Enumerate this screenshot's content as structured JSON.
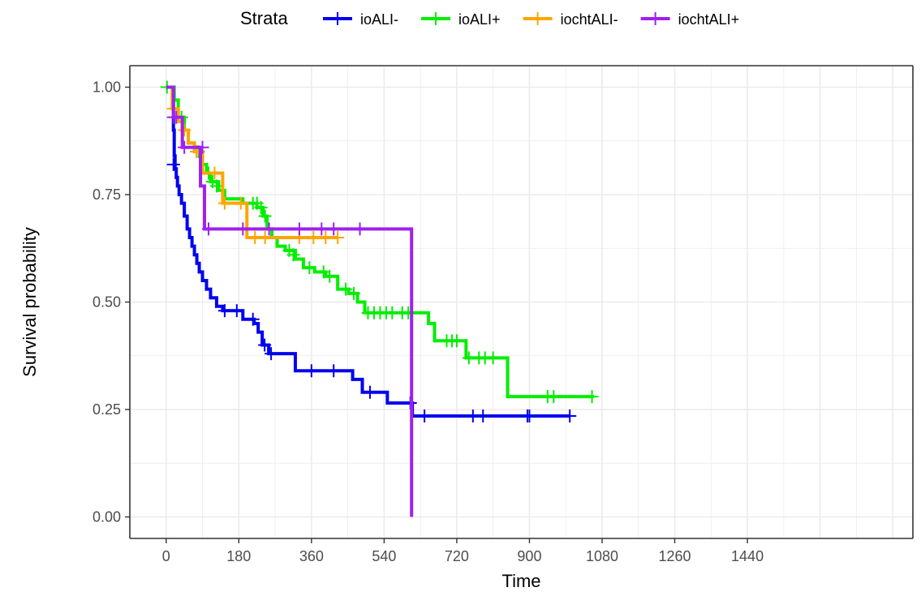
{
  "chart_data": {
    "type": "line",
    "subtype": "kaplan-meier survival curve",
    "xlabel": "Time",
    "ylabel": "Survival probability",
    "xlim": [
      -90,
      1850
    ],
    "ylim": [
      -0.05,
      1.05
    ],
    "x_ticks": [
      0,
      180,
      360,
      540,
      720,
      900,
      1080,
      1260,
      1440
    ],
    "x_tick_labels": [
      "0",
      "180",
      "360",
      "540",
      "720",
      "900",
      "1080",
      "1260",
      "1440"
    ],
    "y_ticks": [
      0,
      0.25,
      0.5,
      0.75,
      1
    ],
    "y_tick_labels": [
      "0.00",
      "0.25",
      "0.50",
      "0.75",
      "1.00"
    ],
    "grid": true,
    "legend": {
      "title": "Strata",
      "position": "top"
    },
    "series": [
      {
        "name": "ioALI-",
        "color": "#0000EE",
        "steps": [
          [
            0,
            1.0
          ],
          [
            18,
            0.9
          ],
          [
            20,
            0.84
          ],
          [
            22,
            0.81
          ],
          [
            25,
            0.79
          ],
          [
            28,
            0.77
          ],
          [
            32,
            0.75
          ],
          [
            38,
            0.73
          ],
          [
            45,
            0.7
          ],
          [
            52,
            0.67
          ],
          [
            58,
            0.65
          ],
          [
            64,
            0.63
          ],
          [
            70,
            0.61
          ],
          [
            76,
            0.59
          ],
          [
            82,
            0.57
          ],
          [
            90,
            0.55
          ],
          [
            100,
            0.53
          ],
          [
            110,
            0.51
          ],
          [
            125,
            0.49
          ],
          [
            140,
            0.48
          ],
          [
            190,
            0.46
          ],
          [
            218,
            0.45
          ],
          [
            228,
            0.43
          ],
          [
            238,
            0.4
          ],
          [
            254,
            0.38
          ],
          [
            320,
            0.34
          ],
          [
            462,
            0.32
          ],
          [
            486,
            0.29
          ],
          [
            548,
            0.265
          ],
          [
            610,
            0.235
          ],
          [
            1000,
            0.235
          ]
        ],
        "censors": [
          [
            18,
            0.82
          ],
          [
            145,
            0.48
          ],
          [
            175,
            0.48
          ],
          [
            215,
            0.46
          ],
          [
            244,
            0.4
          ],
          [
            260,
            0.38
          ],
          [
            360,
            0.34
          ],
          [
            415,
            0.34
          ],
          [
            505,
            0.29
          ],
          [
            605,
            0.265
          ],
          [
            640,
            0.235
          ],
          [
            760,
            0.235
          ],
          [
            785,
            0.235
          ],
          [
            895,
            0.235
          ],
          [
            900,
            0.235
          ],
          [
            1000,
            0.235
          ]
        ]
      },
      {
        "name": "ioALI+",
        "color": "#00EE00",
        "steps": [
          [
            0,
            1.0
          ],
          [
            20,
            0.97
          ],
          [
            30,
            0.93
          ],
          [
            45,
            0.9
          ],
          [
            55,
            0.87
          ],
          [
            70,
            0.85
          ],
          [
            90,
            0.82
          ],
          [
            100,
            0.8
          ],
          [
            110,
            0.78
          ],
          [
            130,
            0.76
          ],
          [
            145,
            0.74
          ],
          [
            190,
            0.73
          ],
          [
            225,
            0.72
          ],
          [
            240,
            0.7
          ],
          [
            250,
            0.67
          ],
          [
            262,
            0.65
          ],
          [
            275,
            0.63
          ],
          [
            295,
            0.62
          ],
          [
            320,
            0.6
          ],
          [
            340,
            0.58
          ],
          [
            368,
            0.57
          ],
          [
            395,
            0.56
          ],
          [
            425,
            0.53
          ],
          [
            452,
            0.52
          ],
          [
            474,
            0.5
          ],
          [
            492,
            0.475
          ],
          [
            650,
            0.45
          ],
          [
            665,
            0.41
          ],
          [
            743,
            0.37
          ],
          [
            846,
            0.28
          ],
          [
            1060,
            0.28
          ]
        ],
        "censors": [
          [
            2,
            1.0
          ],
          [
            38,
            0.93
          ],
          [
            80,
            0.85
          ],
          [
            105,
            0.8
          ],
          [
            115,
            0.78
          ],
          [
            125,
            0.77
          ],
          [
            215,
            0.73
          ],
          [
            225,
            0.73
          ],
          [
            235,
            0.72
          ],
          [
            245,
            0.7
          ],
          [
            305,
            0.62
          ],
          [
            315,
            0.61
          ],
          [
            355,
            0.58
          ],
          [
            390,
            0.57
          ],
          [
            405,
            0.56
          ],
          [
            445,
            0.53
          ],
          [
            465,
            0.52
          ],
          [
            500,
            0.475
          ],
          [
            515,
            0.475
          ],
          [
            530,
            0.475
          ],
          [
            545,
            0.475
          ],
          [
            560,
            0.475
          ],
          [
            585,
            0.475
          ],
          [
            600,
            0.475
          ],
          [
            695,
            0.41
          ],
          [
            708,
            0.41
          ],
          [
            720,
            0.41
          ],
          [
            750,
            0.37
          ],
          [
            775,
            0.37
          ],
          [
            790,
            0.37
          ],
          [
            810,
            0.37
          ],
          [
            945,
            0.28
          ],
          [
            960,
            0.28
          ],
          [
            1055,
            0.28
          ]
        ]
      },
      {
        "name": "iochtALI-",
        "color": "#FFA500",
        "steps": [
          [
            0,
            1.0
          ],
          [
            15,
            0.95
          ],
          [
            30,
            0.92
          ],
          [
            40,
            0.9
          ],
          [
            55,
            0.87
          ],
          [
            70,
            0.85
          ],
          [
            90,
            0.8
          ],
          [
            140,
            0.73
          ],
          [
            200,
            0.65
          ],
          [
            425,
            0.65
          ]
        ],
        "censors": [
          [
            18,
            0.95
          ],
          [
            45,
            0.9
          ],
          [
            75,
            0.85
          ],
          [
            120,
            0.8
          ],
          [
            145,
            0.73
          ],
          [
            185,
            0.73
          ],
          [
            220,
            0.65
          ],
          [
            245,
            0.65
          ],
          [
            330,
            0.65
          ],
          [
            365,
            0.65
          ],
          [
            395,
            0.65
          ],
          [
            425,
            0.65
          ]
        ]
      },
      {
        "name": "iochtALI+",
        "color": "#A020F0",
        "steps": [
          [
            0,
            1.0
          ],
          [
            10,
            1.0
          ],
          [
            18,
            0.93
          ],
          [
            40,
            0.86
          ],
          [
            85,
            0.77
          ],
          [
            95,
            0.67
          ],
          [
            608,
            0.67
          ],
          [
            608,
            0.0
          ]
        ],
        "censors": [
          [
            18,
            0.93
          ],
          [
            25,
            0.93
          ],
          [
            45,
            0.86
          ],
          [
            90,
            0.86
          ],
          [
            105,
            0.67
          ],
          [
            190,
            0.67
          ],
          [
            255,
            0.67
          ],
          [
            330,
            0.67
          ],
          [
            385,
            0.67
          ],
          [
            415,
            0.67
          ],
          [
            480,
            0.67
          ]
        ]
      }
    ]
  }
}
